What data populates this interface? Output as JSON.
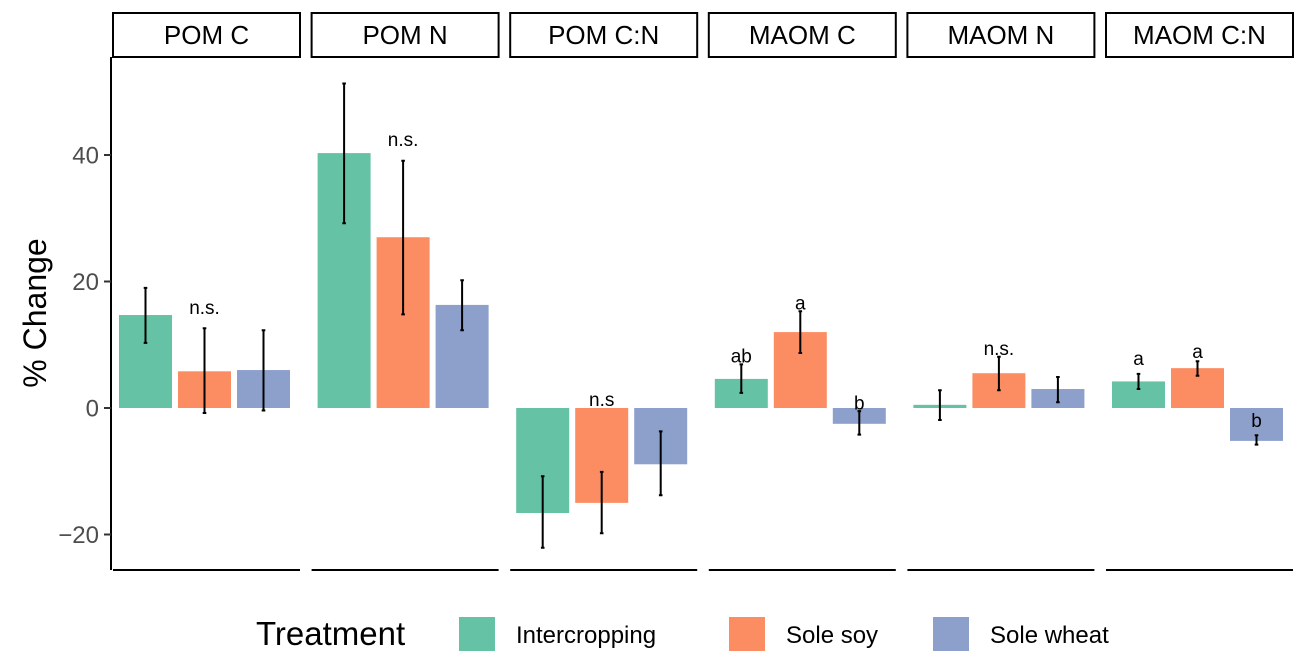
{
  "chart_data": {
    "type": "bar",
    "ylabel": "% Change",
    "ylim": [
      -26,
      56
    ],
    "yticks": [
      -20,
      0,
      20,
      40
    ],
    "ytick_labels": [
      "−20",
      "0",
      "20",
      "40"
    ],
    "grid": false,
    "legend": {
      "title": "Treatment",
      "position": "bottom",
      "items": [
        {
          "name": "Intercropping",
          "color": "#66c2a5"
        },
        {
          "name": "Sole soy",
          "color": "#fc8d62"
        },
        {
          "name": "Sole wheat",
          "color": "#8da0cb"
        }
      ]
    },
    "panels": [
      {
        "title": "POM C",
        "bars": [
          {
            "treatment": "Intercropping",
            "value": 14.7,
            "err_low": 10.3,
            "err_high": 19.0
          },
          {
            "treatment": "Sole soy",
            "value": 5.8,
            "err_low": -0.8,
            "err_high": 12.6
          },
          {
            "treatment": "Sole wheat",
            "value": 6.0,
            "err_low": -0.4,
            "err_high": 12.3
          }
        ],
        "annotations": [
          {
            "text": "n.s.",
            "bar": 1,
            "value": 16.0
          }
        ]
      },
      {
        "title": "POM N",
        "bars": [
          {
            "treatment": "Intercropping",
            "value": 40.3,
            "err_low": 29.2,
            "err_high": 51.3
          },
          {
            "treatment": "Sole soy",
            "value": 27.0,
            "err_low": 14.8,
            "err_high": 39.1
          },
          {
            "treatment": "Sole wheat",
            "value": 16.3,
            "err_low": 12.3,
            "err_high": 20.2
          }
        ],
        "annotations": [
          {
            "text": "n.s.",
            "bar": 1,
            "value": 42.5
          }
        ]
      },
      {
        "title": "POM C:N",
        "bars": [
          {
            "treatment": "Intercropping",
            "value": -16.6,
            "err_low": -22.1,
            "err_high": -10.8
          },
          {
            "treatment": "Sole soy",
            "value": -15.0,
            "err_low": -19.8,
            "err_high": -10.1
          },
          {
            "treatment": "Sole wheat",
            "value": -8.9,
            "err_low": -13.8,
            "err_high": -3.7
          }
        ],
        "annotations": [
          {
            "text": "n.s",
            "bar": 1,
            "value": 1.4
          }
        ]
      },
      {
        "title": "MAOM C",
        "bars": [
          {
            "treatment": "Intercropping",
            "value": 4.6,
            "err_low": 2.4,
            "err_high": 6.9
          },
          {
            "treatment": "Sole soy",
            "value": 12.0,
            "err_low": 8.7,
            "err_high": 15.3
          },
          {
            "treatment": "Sole wheat",
            "value": -2.5,
            "err_low": -4.2,
            "err_high": -0.5
          }
        ],
        "annotations": [
          {
            "text": "ab",
            "bar": 0,
            "value": 8.3
          },
          {
            "text": "a",
            "bar": 1,
            "value": 16.7
          },
          {
            "text": "b",
            "bar": 2,
            "value": 0.9
          }
        ]
      },
      {
        "title": "MAOM N",
        "bars": [
          {
            "treatment": "Intercropping",
            "value": 0.5,
            "err_low": -1.9,
            "err_high": 2.8
          },
          {
            "treatment": "Sole soy",
            "value": 5.5,
            "err_low": 2.8,
            "err_high": 8.1
          },
          {
            "treatment": "Sole wheat",
            "value": 3.0,
            "err_low": 0.9,
            "err_high": 4.9
          }
        ],
        "annotations": [
          {
            "text": "n.s.",
            "bar": 1,
            "value": 9.5
          }
        ]
      },
      {
        "title": "MAOM C:N",
        "bars": [
          {
            "treatment": "Intercropping",
            "value": 4.2,
            "err_low": 3.0,
            "err_high": 5.4
          },
          {
            "treatment": "Sole soy",
            "value": 6.3,
            "err_low": 5.1,
            "err_high": 7.4
          },
          {
            "treatment": "Sole wheat",
            "value": -5.2,
            "err_low": -5.8,
            "err_high": -4.3
          }
        ],
        "annotations": [
          {
            "text": "a",
            "bar": 0,
            "value": 7.9
          },
          {
            "text": "a",
            "bar": 1,
            "value": 9.0
          },
          {
            "text": "b",
            "bar": 2,
            "value": -1.9
          }
        ]
      }
    ]
  }
}
